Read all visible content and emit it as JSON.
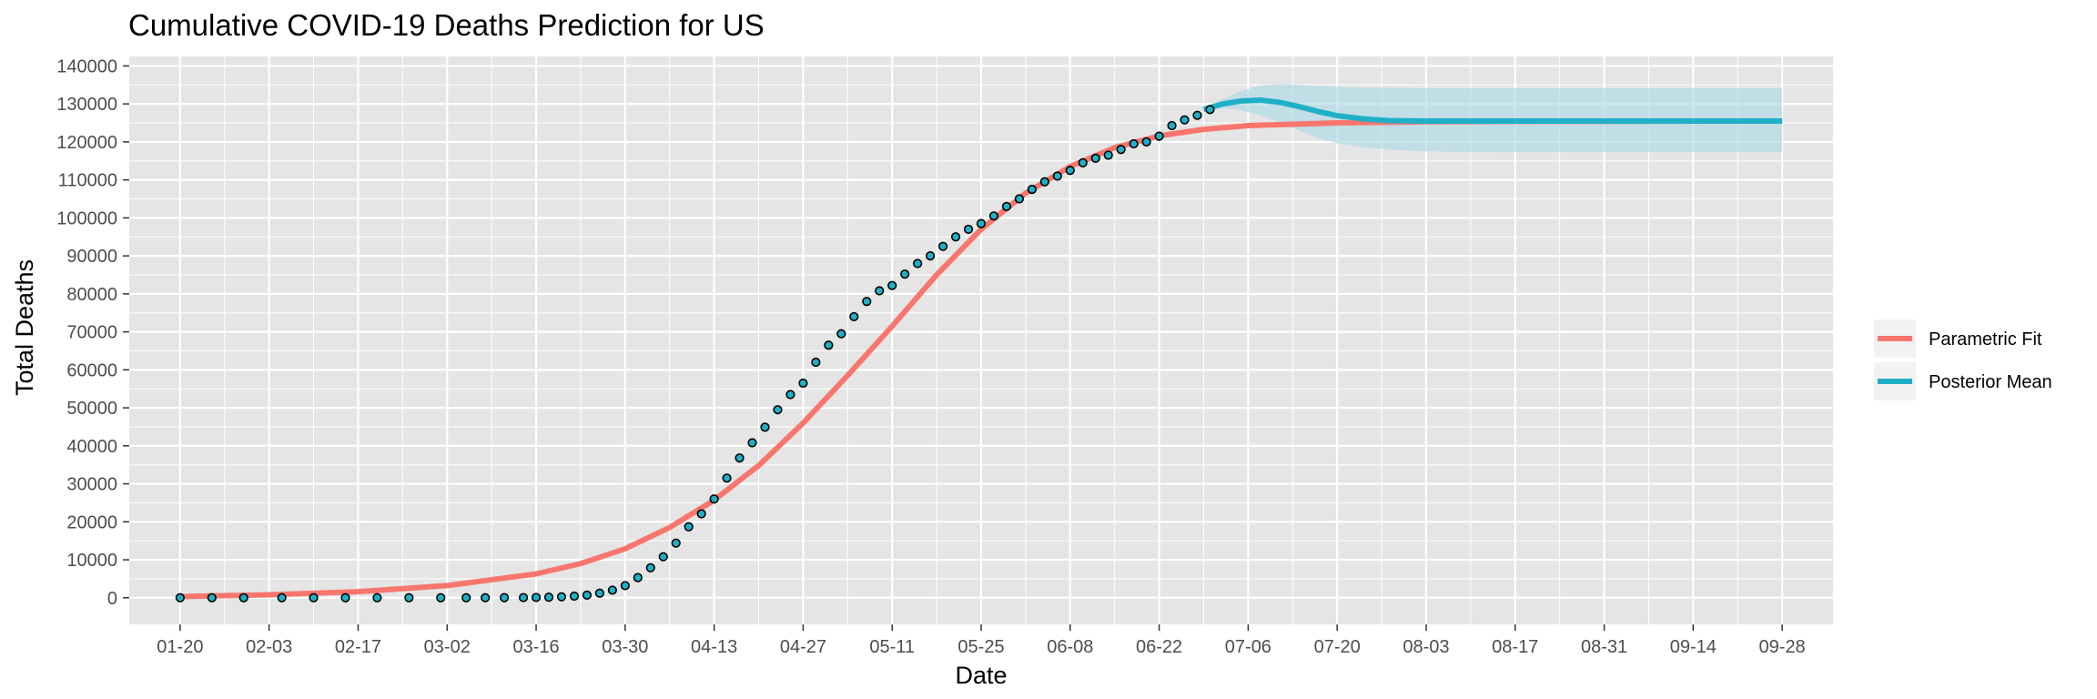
{
  "chart_data": {
    "type": "line",
    "title": "Cumulative COVID-19 Deaths Prediction for US",
    "xlabel": "Date",
    "ylabel": "Total Deaths",
    "x_ticks": [
      "01-20",
      "02-03",
      "02-17",
      "03-02",
      "03-16",
      "03-30",
      "04-13",
      "04-27",
      "05-11",
      "05-25",
      "06-08",
      "06-22",
      "07-06",
      "07-20",
      "08-03",
      "08-17",
      "08-31",
      "09-14",
      "09-28"
    ],
    "y_ticks": [
      0,
      10000,
      20000,
      30000,
      40000,
      50000,
      60000,
      70000,
      80000,
      90000,
      100000,
      110000,
      120000,
      130000,
      140000
    ],
    "xlim": [
      "01-12",
      "10-06"
    ],
    "ylim": [
      -7000,
      142500
    ],
    "grid": true,
    "legend_position": "right",
    "colors": {
      "panel": "#e5e5e5",
      "grid": "#ffffff",
      "parametric": "#f8766d",
      "posterior": "#1fb0c7",
      "band": "#add8e6",
      "points_fill": "#1fb0c7",
      "points_stroke": "#000000"
    },
    "series": [
      {
        "name": "Parametric Fit",
        "kind": "line",
        "x": [
          "01-20",
          "02-03",
          "02-17",
          "03-02",
          "03-16",
          "03-23",
          "03-30",
          "04-06",
          "04-13",
          "04-20",
          "04-27",
          "05-04",
          "05-11",
          "05-18",
          "05-25",
          "06-01",
          "06-08",
          "06-15",
          "06-22",
          "06-29",
          "07-06",
          "07-20",
          "08-03",
          "08-17",
          "09-28"
        ],
        "y": [
          300,
          800,
          1600,
          3200,
          6300,
          9000,
          12900,
          18500,
          25700,
          34800,
          46000,
          58500,
          71500,
          85000,
          97000,
          106500,
          113500,
          118500,
          121600,
          123300,
          124300,
          125000,
          125300,
          125400,
          125500
        ]
      },
      {
        "name": "Posterior Mean",
        "kind": "line",
        "x": [
          "06-29",
          "07-02",
          "07-05",
          "07-08",
          "07-11",
          "07-14",
          "07-17",
          "07-20",
          "07-24",
          "07-28",
          "08-03",
          "08-17",
          "08-31",
          "09-14",
          "09-28"
        ],
        "y": [
          128500,
          130000,
          130800,
          131000,
          130400,
          129300,
          128000,
          126900,
          126100,
          125600,
          125500,
          125500,
          125500,
          125500,
          125500
        ]
      },
      {
        "name": "Posterior Interval",
        "kind": "band",
        "x": [
          "06-29",
          "07-02",
          "07-05",
          "07-08",
          "07-11",
          "07-14",
          "07-17",
          "07-20",
          "07-24",
          "07-28",
          "08-03",
          "08-17",
          "08-31",
          "09-14",
          "09-28"
        ],
        "lower": [
          128000,
          128800,
          128300,
          127000,
          125000,
          123000,
          121000,
          119600,
          118600,
          118000,
          117500,
          117300,
          117300,
          117300,
          117300
        ],
        "upper": [
          129000,
          131300,
          133500,
          134800,
          135200,
          135000,
          134700,
          134500,
          134300,
          134200,
          134100,
          134100,
          134100,
          134100,
          134100
        ]
      },
      {
        "name": "Observed",
        "kind": "points",
        "x": [
          "01-20",
          "01-25",
          "01-30",
          "02-05",
          "02-10",
          "02-15",
          "02-20",
          "02-25",
          "03-01",
          "03-05",
          "03-08",
          "03-11",
          "03-14",
          "03-16",
          "03-18",
          "03-20",
          "03-22",
          "03-24",
          "03-26",
          "03-28",
          "03-30",
          "04-01",
          "04-03",
          "04-05",
          "04-07",
          "04-09",
          "04-11",
          "04-13",
          "04-15",
          "04-17",
          "04-19",
          "04-21",
          "04-23",
          "04-25",
          "04-27",
          "04-29",
          "05-01",
          "05-03",
          "05-05",
          "05-07",
          "05-09",
          "05-11",
          "05-13",
          "05-15",
          "05-17",
          "05-19",
          "05-21",
          "05-23",
          "05-25",
          "05-27",
          "05-29",
          "05-31",
          "06-02",
          "06-04",
          "06-06",
          "06-08",
          "06-10",
          "06-12",
          "06-14",
          "06-16",
          "06-18",
          "06-20",
          "06-22",
          "06-24",
          "06-26",
          "06-28",
          "06-30"
        ],
        "y": [
          0,
          0,
          0,
          0,
          0,
          0,
          0,
          0,
          1,
          11,
          22,
          38,
          57,
          86,
          150,
          260,
          420,
          700,
          1200,
          2000,
          3200,
          5300,
          7900,
          10800,
          14400,
          18700,
          22100,
          26000,
          31500,
          36800,
          40800,
          44900,
          49500,
          53500,
          56500,
          62000,
          66500,
          69500,
          74000,
          78000,
          80800,
          82200,
          85200,
          88000,
          90000,
          92500,
          95000,
          97000,
          98500,
          100500,
          103000,
          105000,
          107500,
          109500,
          111000,
          112500,
          114500,
          115700,
          116500,
          118000,
          119500,
          120000,
          121500,
          124300,
          125800,
          127000,
          128500
        ]
      }
    ]
  }
}
